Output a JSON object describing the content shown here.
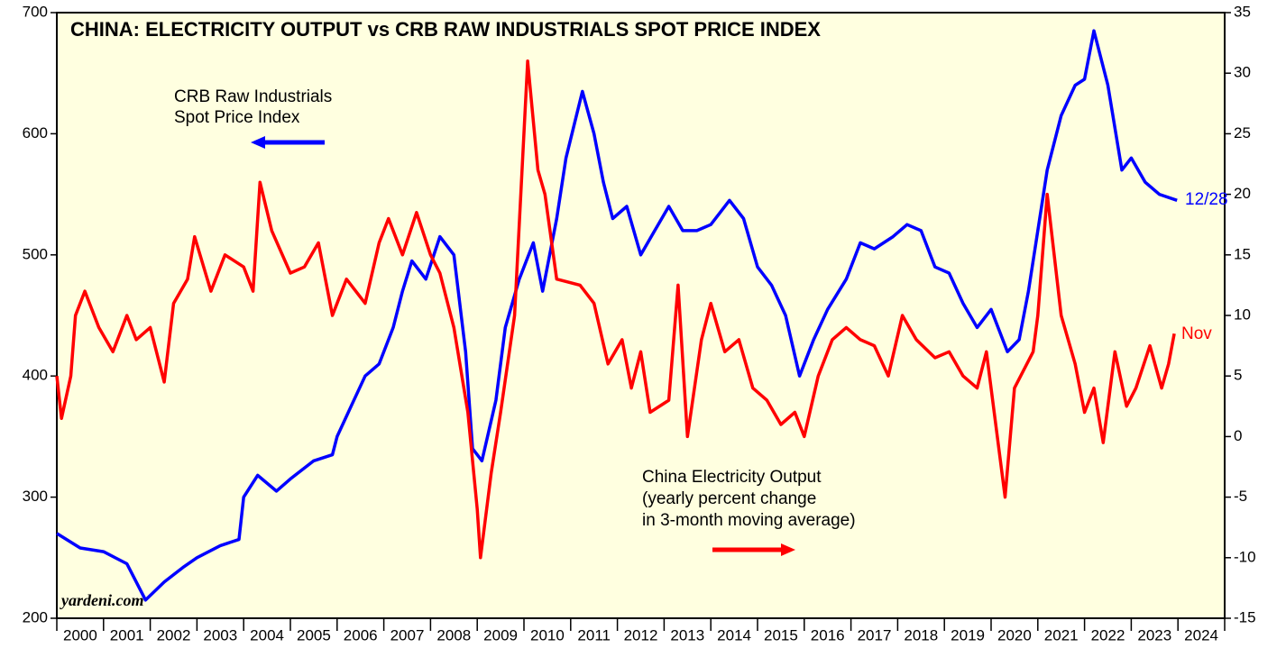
{
  "chart_data": {
    "type": "line",
    "title": "CHINA: ELECTRICITY OUTPUT vs CRB RAW INDUSTRIALS SPOT PRICE INDEX",
    "annotations": [
      "CRB Raw Industrials",
      "Spot Price Index",
      "China Electricity Output",
      "(yearly percent change",
      "in 3-month moving average)",
      "12/28",
      "Nov"
    ],
    "source": "yardeni.com",
    "xlim": [
      2000,
      2025
    ],
    "xticks": [
      2000,
      2001,
      2002,
      2003,
      2004,
      2005,
      2006,
      2007,
      2008,
      2009,
      2010,
      2011,
      2012,
      2013,
      2014,
      2015,
      2016,
      2017,
      2018,
      2019,
      2020,
      2021,
      2022,
      2023,
      2024
    ],
    "ylim": [
      200,
      700
    ],
    "yticks": [
      200,
      300,
      400,
      500,
      600,
      700
    ],
    "y2lim": [
      -15,
      35
    ],
    "y2ticks": [
      -15,
      -10,
      -5,
      0,
      5,
      10,
      15,
      20,
      25,
      30,
      35
    ],
    "series": [
      {
        "name": "CRB Raw Industrials Spot Price Index",
        "color": "#0000ff",
        "axis": "y",
        "x": [
          2000.0,
          2000.5,
          2001.0,
          2001.5,
          2001.9,
          2002.3,
          2002.7,
          2003.0,
          2003.5,
          2003.9,
          2004.0,
          2004.3,
          2004.7,
          2005.0,
          2005.5,
          2005.9,
          2006.0,
          2006.3,
          2006.6,
          2006.9,
          2007.2,
          2007.4,
          2007.6,
          2007.9,
          2008.2,
          2008.5,
          2008.75,
          2008.9,
          2009.1,
          2009.4,
          2009.6,
          2009.9,
          2010.2,
          2010.4,
          2010.7,
          2010.9,
          2011.25,
          2011.5,
          2011.7,
          2011.9,
          2012.2,
          2012.5,
          2012.8,
          2013.1,
          2013.4,
          2013.7,
          2014.0,
          2014.4,
          2014.7,
          2015.0,
          2015.3,
          2015.6,
          2015.9,
          2016.2,
          2016.5,
          2016.9,
          2017.2,
          2017.5,
          2017.9,
          2018.2,
          2018.5,
          2018.8,
          2019.1,
          2019.4,
          2019.7,
          2020.0,
          2020.35,
          2020.6,
          2020.8,
          2021.0,
          2021.2,
          2021.5,
          2021.8,
          2022.0,
          2022.2,
          2022.5,
          2022.8,
          2023.0,
          2023.3,
          2023.6,
          2023.98
        ],
        "values": [
          270,
          258,
          255,
          245,
          215,
          230,
          242,
          250,
          260,
          265,
          300,
          318,
          305,
          315,
          330,
          335,
          350,
          375,
          400,
          410,
          440,
          470,
          495,
          480,
          515,
          500,
          420,
          340,
          330,
          380,
          440,
          480,
          510,
          470,
          530,
          580,
          635,
          600,
          560,
          530,
          540,
          500,
          520,
          540,
          520,
          520,
          525,
          545,
          530,
          490,
          475,
          450,
          400,
          430,
          455,
          480,
          510,
          505,
          515,
          525,
          520,
          490,
          485,
          460,
          440,
          455,
          420,
          430,
          470,
          520,
          570,
          615,
          640,
          645,
          685,
          640,
          570,
          580,
          560,
          550,
          545
        ]
      },
      {
        "name": "China Electricity Output",
        "color": "#ff0000",
        "axis": "y2",
        "x": [
          2000.0,
          2000.1,
          2000.3,
          2000.4,
          2000.6,
          2000.9,
          2001.2,
          2001.5,
          2001.7,
          2002.0,
          2002.3,
          2002.5,
          2002.8,
          2002.95,
          2003.3,
          2003.6,
          2004.0,
          2004.2,
          2004.35,
          2004.6,
          2005.0,
          2005.3,
          2005.6,
          2005.9,
          2006.2,
          2006.6,
          2006.9,
          2007.1,
          2007.4,
          2007.7,
          2008.0,
          2008.2,
          2008.5,
          2008.8,
          2009.0,
          2009.07,
          2009.3,
          2009.5,
          2009.8,
          2010.08,
          2010.3,
          2010.45,
          2010.7,
          2011.2,
          2011.5,
          2011.8,
          2012.1,
          2012.3,
          2012.5,
          2012.7,
          2013.1,
          2013.3,
          2013.5,
          2013.8,
          2014.0,
          2014.3,
          2014.6,
          2014.9,
          2015.2,
          2015.5,
          2015.8,
          2016.0,
          2016.3,
          2016.6,
          2016.9,
          2017.2,
          2017.5,
          2017.8,
          2018.1,
          2018.4,
          2018.8,
          2019.1,
          2019.4,
          2019.7,
          2019.9,
          2020.3,
          2020.5,
          2020.9,
          2021.0,
          2021.2,
          2021.5,
          2021.8,
          2022.0,
          2022.2,
          2022.4,
          2022.65,
          2022.9,
          2023.1,
          2023.4,
          2023.65,
          2023.8,
          2023.92
        ],
        "values": [
          5,
          1.5,
          5,
          10,
          12,
          9,
          7,
          10,
          8,
          9,
          4.5,
          11,
          13,
          16.5,
          12,
          15,
          14,
          12,
          21,
          17,
          13.5,
          14,
          16,
          10,
          13,
          11,
          16,
          18,
          15,
          18.5,
          15,
          13.5,
          9,
          2,
          -6,
          -10,
          -3,
          2,
          10,
          31,
          22,
          20,
          13,
          12.5,
          11,
          6,
          8,
          4,
          7,
          2,
          3,
          12.5,
          0,
          8,
          11,
          7,
          8,
          4,
          3,
          1,
          2,
          0,
          5,
          8,
          9,
          8,
          7.5,
          5,
          10,
          8,
          6.5,
          7,
          5,
          4,
          7,
          -5,
          4,
          7,
          10,
          20,
          10,
          6,
          2,
          4,
          -0.5,
          7,
          2.5,
          4,
          7.5,
          4,
          6,
          8.5
        ]
      }
    ]
  }
}
